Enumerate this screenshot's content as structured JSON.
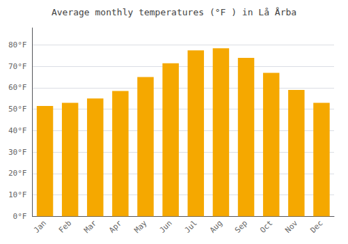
{
  "chart_data": {
    "type": "bar",
    "title": "Average monthly temperatures (°F ) in Lå Årba",
    "categories": [
      "Jan",
      "Feb",
      "Mar",
      "Apr",
      "May",
      "Jun",
      "Jul",
      "Aug",
      "Sep",
      "Oct",
      "Nov",
      "Dec"
    ],
    "values": [
      51.5,
      53.0,
      55.0,
      58.5,
      65.0,
      71.5,
      77.5,
      78.5,
      74.0,
      67.0,
      59.0,
      53.0
    ],
    "color": "#F5A800",
    "ylim": [
      0,
      88
    ],
    "yticks": [
      {
        "value": 0,
        "label": "0°F"
      },
      {
        "value": 10,
        "label": "10°F"
      },
      {
        "value": 20,
        "label": "20°F"
      },
      {
        "value": 30,
        "label": "30°F"
      },
      {
        "value": 40,
        "label": "40°F"
      },
      {
        "value": 50,
        "label": "50°F"
      },
      {
        "value": 60,
        "label": "60°F"
      },
      {
        "value": 70,
        "label": "70°F"
      },
      {
        "value": 80,
        "label": "80°F"
      }
    ],
    "grid": true
  }
}
